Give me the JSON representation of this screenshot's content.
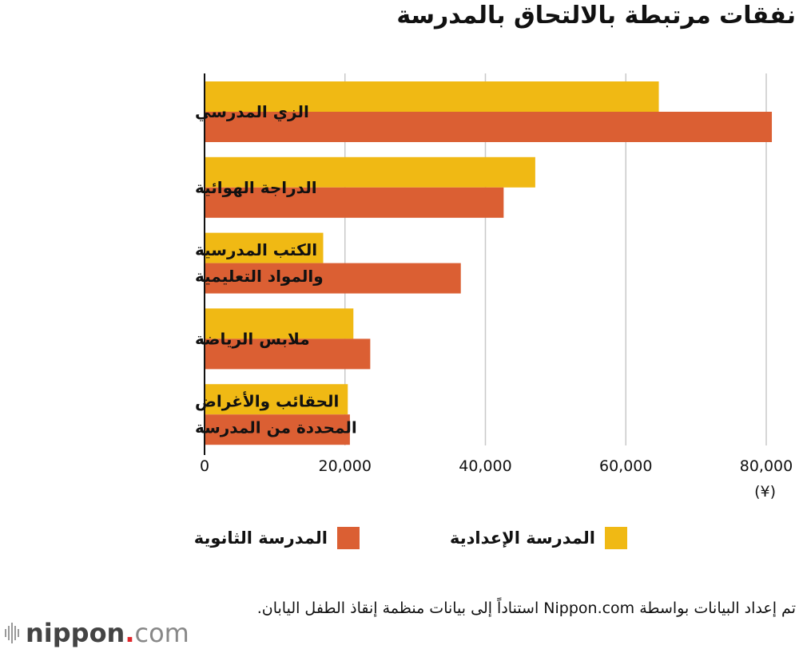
{
  "title": "نفقات مرتبطة بالالتحاق بالمدرسة",
  "chart_data": {
    "type": "bar",
    "orientation": "horizontal",
    "categories": [
      [
        "الزي المدرسي"
      ],
      [
        "الدراجة الهوائية"
      ],
      [
        "الكتب المدرسية",
        "والمواد التعليمية"
      ],
      [
        "ملابس الرياضة"
      ],
      [
        "الحقائب والأغراض",
        "المحددة من المدرسة"
      ]
    ],
    "series": [
      {
        "name": "المدرسة الإعدادية",
        "color": "#f0b914",
        "values": [
          64700,
          47100,
          16900,
          21200,
          20400
        ]
      },
      {
        "name": "المدرسة الثانوية",
        "color": "#db5f33",
        "values": [
          80800,
          42600,
          36500,
          23600,
          20700
        ]
      }
    ],
    "xlim": [
      0,
      80000
    ],
    "xticks": [
      "0",
      "20,000",
      "40,000",
      "60,000",
      "80,000"
    ],
    "xunit": "(¥)",
    "grid": true,
    "legend": "bottom"
  },
  "source": "تم إعداد البيانات بواسطة Nippon.com استناداً إلى بيانات منظمة إنقاذ الطفل اليابان.",
  "logo": {
    "name": "nippon",
    "dot": ".",
    "suffix": "com"
  }
}
